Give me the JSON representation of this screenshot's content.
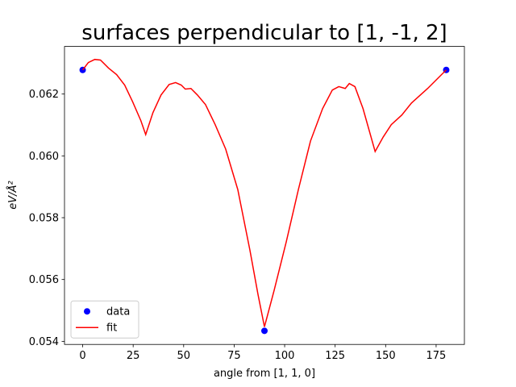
{
  "chart_data": {
    "type": "line",
    "title": "surfaces perpendicular to [1, -1, 2]",
    "xlabel": "angle from [1, 1, 0]",
    "ylabel": "eV/Å²",
    "xlim": [
      -9,
      189
    ],
    "ylim": [
      0.0539,
      0.06354
    ],
    "xticks": [
      0,
      25,
      50,
      75,
      100,
      125,
      150,
      175
    ],
    "yticks": [
      0.054,
      0.056,
      0.058,
      {
        "value": 0.06,
        "label": "0.060"
      },
      0.062
    ],
    "legend": "lower left",
    "series": [
      {
        "name": "data",
        "type": "scatter",
        "color": "blue",
        "x": [
          0,
          90,
          180
        ],
        "values": [
          0.06278,
          0.05434,
          0.06278
        ]
      },
      {
        "name": "fit",
        "type": "line",
        "color": "red",
        "x": [
          0,
          2.8,
          6,
          8.8,
          12.8,
          16.8,
          20.8,
          24.8,
          28.8,
          31.2,
          34.8,
          38.8,
          42.8,
          46,
          48.8,
          50.8,
          53.6,
          56.8,
          60.8,
          65.6,
          70.8,
          76.8,
          82.8,
          86.8,
          90,
          94.8,
          100.8,
          106.8,
          112.8,
          118.8,
          123.6,
          126.8,
          130,
          132,
          134.8,
          138.8,
          144.8,
          148.8,
          152.8,
          158,
          162.8,
          170.8,
          180
        ],
        "values": [
          0.06278,
          0.06302,
          0.06312,
          0.0631,
          0.06284,
          0.06263,
          0.06229,
          0.06174,
          0.06114,
          0.06069,
          0.0614,
          0.06197,
          0.06231,
          0.06237,
          0.06229,
          0.06216,
          0.06218,
          0.06197,
          0.06166,
          0.06101,
          0.06022,
          0.05891,
          0.05695,
          0.05552,
          0.05447,
          0.05565,
          0.05722,
          0.05891,
          0.06048,
          0.06153,
          0.06213,
          0.06224,
          0.06218,
          0.06234,
          0.06224,
          0.06153,
          0.06014,
          0.06061,
          0.06101,
          0.06132,
          0.06171,
          0.06218,
          0.06278
        ]
      }
    ]
  }
}
